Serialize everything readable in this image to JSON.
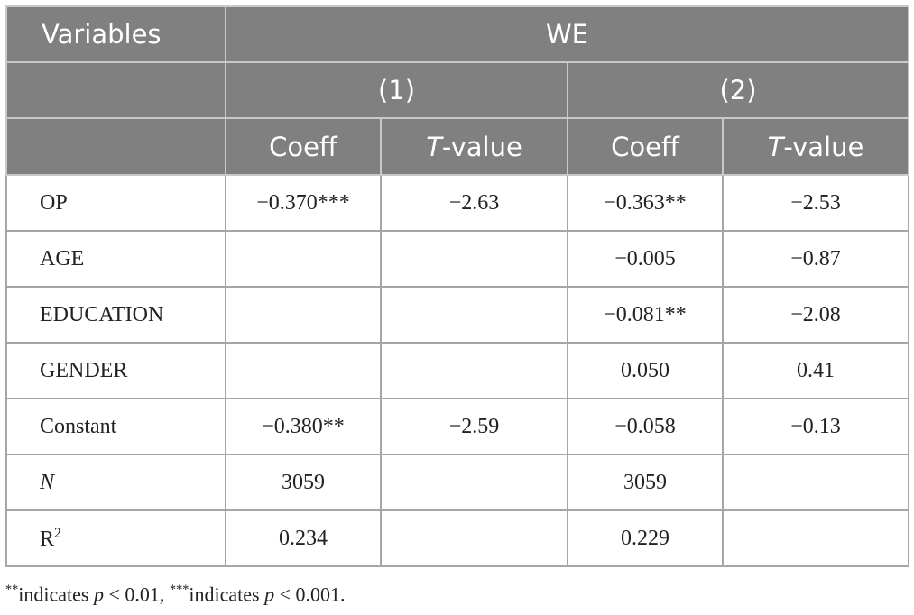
{
  "table": {
    "header": {
      "variables": "Variables",
      "group": "WE",
      "models": [
        "(1)",
        "(2)"
      ],
      "columns": [
        {
          "text": "Coeff"
        },
        {
          "italic": "T",
          "text": "-value"
        },
        {
          "text": "Coeff"
        },
        {
          "italic": "T",
          "text": "-value"
        }
      ]
    },
    "rows": [
      {
        "label": "OP",
        "cells": [
          "−0.370***",
          "−2.63",
          "−0.363**",
          "−2.53"
        ]
      },
      {
        "label": "AGE",
        "cells": [
          null,
          null,
          "−0.005",
          "−0.87"
        ]
      },
      {
        "label": "EDUCATION",
        "cells": [
          null,
          null,
          "−0.081**",
          "−2.08"
        ]
      },
      {
        "label": "GENDER",
        "cells": [
          null,
          null,
          "0.050",
          "0.41"
        ]
      },
      {
        "label": "Constant",
        "cells": [
          "−0.380**",
          "−2.59",
          "−0.058",
          "−0.13"
        ]
      },
      {
        "label": "N",
        "label_italic": true,
        "cells": [
          "3059",
          null,
          "3059",
          null
        ]
      },
      {
        "label": "R",
        "label_sup": "2",
        "cells": [
          "0.234",
          null,
          "0.229",
          null
        ]
      }
    ]
  },
  "footnote": [
    {
      "text": "**",
      "sup": true
    },
    {
      "text": "indicates "
    },
    {
      "text": "p",
      "italic": true
    },
    {
      "text": " < 0.01, "
    },
    {
      "text": "***",
      "sup": true
    },
    {
      "text": "indicates "
    },
    {
      "text": "p",
      "italic": true
    },
    {
      "text": " < 0.001."
    }
  ]
}
